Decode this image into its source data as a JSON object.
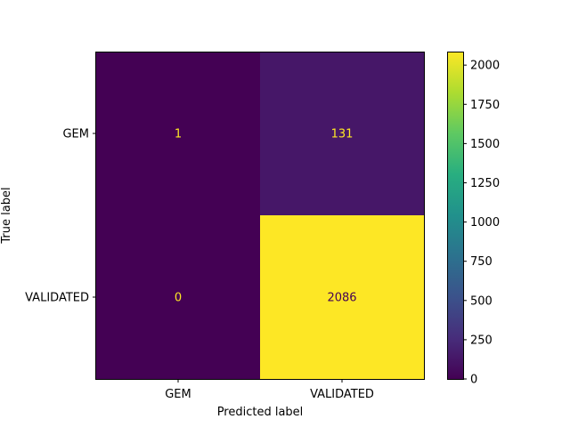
{
  "chart_data": {
    "type": "heatmap",
    "title": "",
    "xlabel": "Predicted label",
    "ylabel": "True label",
    "x_categories": [
      "GEM",
      "VALIDATED"
    ],
    "y_categories": [
      "GEM",
      "VALIDATED"
    ],
    "values": [
      [
        1,
        131
      ],
      [
        0,
        2086
      ]
    ],
    "colormap": "viridis",
    "colorbar": {
      "min": 0,
      "max": 2086,
      "ticks": [
        0,
        250,
        500,
        750,
        1000,
        1250,
        1500,
        1750,
        2000
      ],
      "tick_labels": [
        "0",
        "250",
        "500",
        "750",
        "1000",
        "1250",
        "1500",
        "1750",
        "2000"
      ]
    },
    "grid": false
  }
}
